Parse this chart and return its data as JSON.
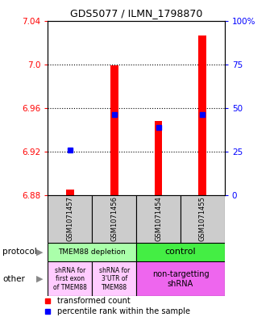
{
  "title": "GDS5077 / ILMN_1798870",
  "samples": [
    "GSM1071457",
    "GSM1071456",
    "GSM1071454",
    "GSM1071455"
  ],
  "red_values": [
    6.885,
    6.999,
    6.948,
    7.026
  ],
  "blue_values": [
    6.921,
    6.954,
    6.942,
    6.954
  ],
  "ylim": [
    6.88,
    7.04
  ],
  "yticks_left": [
    6.88,
    6.92,
    6.96,
    7.0,
    7.04
  ],
  "yticks_right_vals": [
    0,
    25,
    50,
    75,
    100
  ],
  "yticks_right_labels": [
    "0",
    "25",
    "50",
    "75",
    "100%"
  ],
  "gridlines": [
    7.0,
    6.96,
    6.92
  ],
  "protocol_labels": [
    "TMEM88 depletion",
    "control"
  ],
  "protocol_colors": [
    "#aaffaa",
    "#44ee44"
  ],
  "other_labels": [
    "shRNA for\nfirst exon\nof TMEM88",
    "shRNA for\n3'UTR of\nTMEM88",
    "non-targetting\nshRNA"
  ],
  "other_colors": [
    "#ffccff",
    "#ffccff",
    "#ee66ee"
  ],
  "sample_bg": "#cccccc",
  "legend_red_label": "transformed count",
  "legend_blue_label": "percentile rank within the sample",
  "protocol_text": "protocol",
  "other_text": "other",
  "bar_width": 0.18
}
